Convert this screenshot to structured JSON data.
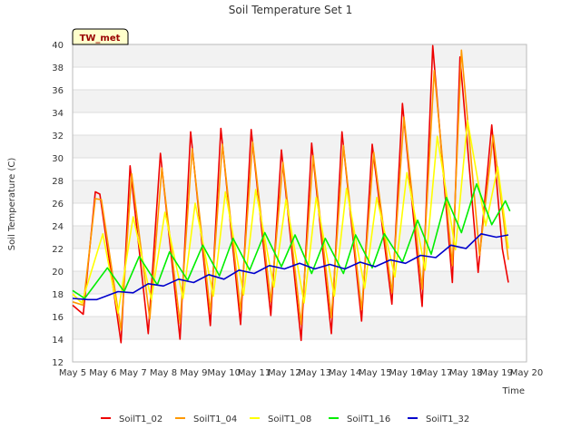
{
  "chart_data": {
    "type": "line",
    "title": "Soil Temperature Set 1",
    "xlabel": "Time",
    "ylabel": "Soil Temperature (C)",
    "badge": "TW_met",
    "xlim": [
      5,
      20
    ],
    "ylim": [
      12,
      40
    ],
    "yticks": [
      12,
      14,
      16,
      18,
      20,
      22,
      24,
      26,
      28,
      30,
      32,
      34,
      36,
      38,
      40
    ],
    "xticks": [
      {
        "x": 5,
        "label": "May 5"
      },
      {
        "x": 6,
        "label": "May 6"
      },
      {
        "x": 7,
        "label": "May 7"
      },
      {
        "x": 8,
        "label": "May 8"
      },
      {
        "x": 9,
        "label": "May 9"
      },
      {
        "x": 10,
        "label": "May 10"
      },
      {
        "x": 11,
        "label": "May 11"
      },
      {
        "x": 12,
        "label": "May 12"
      },
      {
        "x": 13,
        "label": "May 13"
      },
      {
        "x": 14,
        "label": "May 14"
      },
      {
        "x": 15,
        "label": "May 15"
      },
      {
        "x": 16,
        "label": "May 16"
      },
      {
        "x": 17,
        "label": "May 17"
      },
      {
        "x": 18,
        "label": "May 18"
      },
      {
        "x": 19,
        "label": "May 19"
      },
      {
        "x": 20,
        "label": "May 20"
      }
    ],
    "grid": true,
    "legend_position": "bottom",
    "series": [
      {
        "name": "SoilT1_02",
        "color": "#ee0000",
        "x": [
          5.0,
          5.35,
          5.75,
          5.9,
          6.6,
          6.9,
          7.5,
          7.9,
          8.55,
          8.9,
          9.55,
          9.9,
          10.55,
          10.9,
          11.55,
          11.9,
          12.55,
          12.9,
          13.55,
          13.9,
          14.55,
          14.9,
          15.55,
          15.9,
          16.55,
          16.9,
          17.55,
          17.8,
          18.4,
          18.85,
          19.2,
          19.4
        ],
        "y": [
          17,
          16.2,
          27,
          26.8,
          13.7,
          29.3,
          14.5,
          30.4,
          14,
          32.3,
          15.2,
          32.6,
          15.3,
          32.5,
          16.1,
          30.7,
          13.9,
          31.3,
          14.5,
          32.3,
          15.6,
          31.2,
          17.1,
          34.8,
          16.9,
          39.9,
          19,
          38.9,
          19.9,
          32.9,
          22,
          19
        ]
      },
      {
        "name": "SoilT1_04",
        "color": "#ff9900",
        "x": [
          5.0,
          5.35,
          5.75,
          5.95,
          6.6,
          6.95,
          7.55,
          7.95,
          8.55,
          8.95,
          9.55,
          9.95,
          10.55,
          10.95,
          11.55,
          11.95,
          12.55,
          12.95,
          13.55,
          13.95,
          14.55,
          14.95,
          15.55,
          15.95,
          16.55,
          16.95,
          17.55,
          17.85,
          18.45,
          18.9,
          19.4
        ],
        "y": [
          17.3,
          17,
          26.4,
          26.3,
          14.8,
          28.6,
          15.8,
          29.1,
          15.4,
          30.8,
          16.4,
          31.2,
          16.5,
          31.4,
          17.3,
          29.6,
          15.3,
          30.2,
          15.9,
          31.1,
          16.6,
          30.5,
          18.1,
          33.6,
          18.4,
          37.7,
          20.5,
          39.5,
          21.4,
          32,
          21
        ]
      },
      {
        "name": "SoilT1_08",
        "color": "#ffff00",
        "x": [
          5.0,
          5.3,
          6.0,
          6.5,
          7.0,
          7.6,
          8.05,
          8.65,
          9.05,
          9.65,
          10.05,
          10.65,
          11.05,
          11.65,
          12.05,
          12.65,
          13.05,
          13.65,
          14.05,
          14.65,
          15.05,
          15.65,
          16.05,
          16.65,
          17.05,
          17.65,
          18.05,
          18.65,
          19.05,
          19.4
        ],
        "y": [
          18,
          17.2,
          23.3,
          16.3,
          24.8,
          17.5,
          25.2,
          17.6,
          26,
          17.8,
          27,
          17.9,
          27.2,
          18.6,
          26.3,
          17.2,
          26.5,
          17.8,
          27.3,
          18.5,
          26.5,
          19.5,
          28.7,
          20.1,
          31.9,
          21.9,
          33.3,
          24,
          29.2,
          22
        ]
      },
      {
        "name": "SoilT1_16",
        "color": "#00ee00",
        "x": [
          5.0,
          5.4,
          6.15,
          6.7,
          7.2,
          7.8,
          8.2,
          8.8,
          9.3,
          9.85,
          10.3,
          10.85,
          11.35,
          11.9,
          12.35,
          12.9,
          13.35,
          13.95,
          14.35,
          14.9,
          15.3,
          15.9,
          16.4,
          16.85,
          17.35,
          17.85,
          18.35,
          18.85,
          19.3,
          19.45
        ],
        "y": [
          18.3,
          17.6,
          20.3,
          18.2,
          21.3,
          18.8,
          21.7,
          19.2,
          22.3,
          19.6,
          22.9,
          20.1,
          23.4,
          20.4,
          23.2,
          19.8,
          22.9,
          19.8,
          23.2,
          20.3,
          23.3,
          20.8,
          24.5,
          21.5,
          26.5,
          23.4,
          27.7,
          24.1,
          26.2,
          25.3
        ]
      },
      {
        "name": "SoilT1_32",
        "color": "#0000cc",
        "x": [
          5.0,
          5.5,
          5.8,
          6.1,
          6.5,
          7.0,
          7.5,
          8.0,
          8.5,
          9.0,
          9.5,
          10.0,
          10.5,
          11.0,
          11.5,
          12.0,
          12.5,
          13.0,
          13.5,
          14.0,
          14.5,
          15.0,
          15.5,
          16.0,
          16.5,
          17.0,
          17.5,
          18.0,
          18.5,
          19.0,
          19.4
        ],
        "y": [
          17.6,
          17.5,
          17.5,
          17.8,
          18.2,
          18.1,
          18.9,
          18.7,
          19.3,
          19.0,
          19.7,
          19.3,
          20.1,
          19.8,
          20.5,
          20.2,
          20.7,
          20.2,
          20.6,
          20.2,
          20.8,
          20.4,
          21.0,
          20.7,
          21.4,
          21.2,
          22.3,
          22.0,
          23.3,
          23.0,
          23.2
        ]
      }
    ]
  }
}
